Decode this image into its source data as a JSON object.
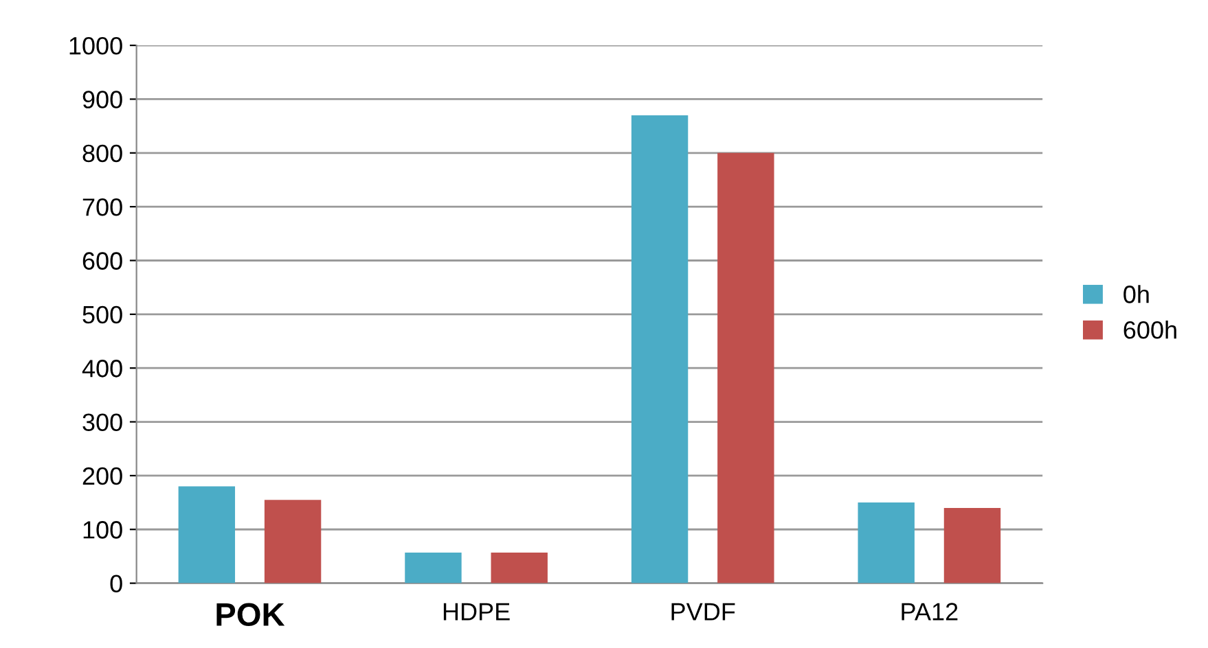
{
  "chart_data": {
    "type": "bar",
    "categories": [
      "POK",
      "HDPE",
      "PVDF",
      "PA12"
    ],
    "series": [
      {
        "name": "0h",
        "color": "#4bacc6",
        "values": [
          180,
          57,
          870,
          150
        ]
      },
      {
        "name": "600h",
        "color": "#c0504d",
        "values": [
          155,
          57,
          800,
          140
        ]
      }
    ],
    "ylim": [
      0,
      1000
    ],
    "yticks": [
      0,
      100,
      200,
      300,
      400,
      500,
      600,
      700,
      800,
      900,
      1000
    ],
    "grid": "y",
    "legend": "right"
  }
}
